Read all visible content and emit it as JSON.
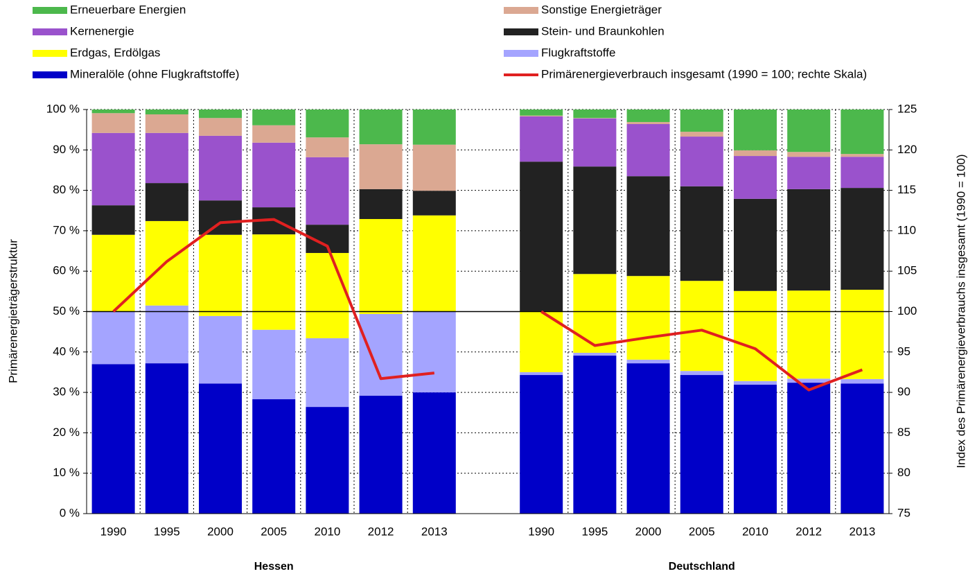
{
  "chart_data": {
    "type": "bar",
    "stacked": true,
    "y_axis_label": "Primärenergieträgerstruktur",
    "y2_axis_label": "Index des Primärenergieverbrauchs insgesamt (1990 = 100)",
    "categories": [
      "1990",
      "1995",
      "2000",
      "2005",
      "2010",
      "2012",
      "2013",
      null,
      "1990",
      "1995",
      "2000",
      "2005",
      "2010",
      "2012",
      "2013"
    ],
    "groups": [
      "Hessen",
      "Deutschland"
    ],
    "series": [
      {
        "name": "Mineralöle (ohne Flugkraftstoffe)",
        "color": "#0000c8",
        "values": [
          37.0,
          37.2,
          32.2,
          28.3,
          26.4,
          29.2,
          30.0,
          null,
          34.3,
          39.1,
          37.2,
          34.3,
          31.9,
          32.4,
          32.2
        ]
      },
      {
        "name": "Flugkraftstoffe",
        "color": "#a4a4ff",
        "values": [
          13.0,
          14.3,
          16.7,
          17.2,
          17.0,
          20.2,
          20.1,
          null,
          0.7,
          0.7,
          0.9,
          1.0,
          0.9,
          1.0,
          1.1
        ]
      },
      {
        "name": "Erdgas, Erdölgas",
        "color": "#ffff00",
        "values": [
          19.0,
          20.9,
          20.1,
          23.6,
          21.1,
          23.5,
          23.7,
          null,
          15.1,
          19.5,
          20.7,
          22.3,
          22.3,
          21.8,
          22.1
        ]
      },
      {
        "name": "Stein- und Braunkohlen",
        "color": "#222222",
        "values": [
          7.3,
          9.4,
          8.5,
          6.7,
          7.0,
          7.4,
          6.1,
          null,
          37.0,
          26.6,
          24.7,
          23.4,
          22.8,
          25.1,
          25.2
        ]
      },
      {
        "name": "Kernenergie",
        "color": "#9a52cc",
        "values": [
          17.9,
          12.4,
          16.0,
          16.0,
          16.7,
          0,
          0,
          null,
          11.2,
          11.9,
          12.9,
          12.3,
          10.6,
          8.0,
          7.7
        ]
      },
      {
        "name": "Sonstige Energieträger",
        "color": "#dba892",
        "values": [
          4.9,
          4.6,
          4.4,
          4.3,
          4.9,
          11.1,
          11.4,
          null,
          0.2,
          0.1,
          0.5,
          1.2,
          1.4,
          1.2,
          0.7
        ]
      },
      {
        "name": "Erneuerbare Energien",
        "color": "#4cb84c",
        "values": [
          0.9,
          1.2,
          2.1,
          3.9,
          6.9,
          8.6,
          8.7,
          null,
          1.5,
          2.1,
          3.1,
          5.5,
          10.1,
          10.5,
          11.0
        ]
      },
      {
        "name": "Primärenergieverbrauch insgesamt (1990 = 100; rechte Skala)",
        "color": "#e02020",
        "type": "line",
        "axis": "y2",
        "values": [
          100,
          106.2,
          111.0,
          111.4,
          108.1,
          91.7,
          92.4,
          null,
          100,
          95.8,
          96.8,
          97.7,
          95.4,
          90.3,
          92.8
        ]
      }
    ],
    "ylim": [
      0,
      100
    ],
    "yticks": [
      {
        "value": 0,
        "label": "0 %"
      },
      {
        "value": 10,
        "label": "10 %"
      },
      {
        "value": 20,
        "label": "20 %"
      },
      {
        "value": 30,
        "label": "30 %"
      },
      {
        "value": 40,
        "label": "40 %"
      },
      {
        "value": 50,
        "label": "50 %"
      },
      {
        "value": 60,
        "label": "60 %"
      },
      {
        "value": 70,
        "label": "70 %"
      },
      {
        "value": 80,
        "label": "80 %"
      },
      {
        "value": 90,
        "label": "90 %"
      },
      {
        "value": 100,
        "label": "100 %"
      }
    ],
    "y2lim": [
      75,
      125
    ],
    "y2ticks": [
      75,
      80,
      85,
      90,
      95,
      100,
      105,
      110,
      115,
      120,
      125
    ],
    "hline": {
      "value": 100,
      "axis": "y2"
    },
    "grid": true
  }
}
